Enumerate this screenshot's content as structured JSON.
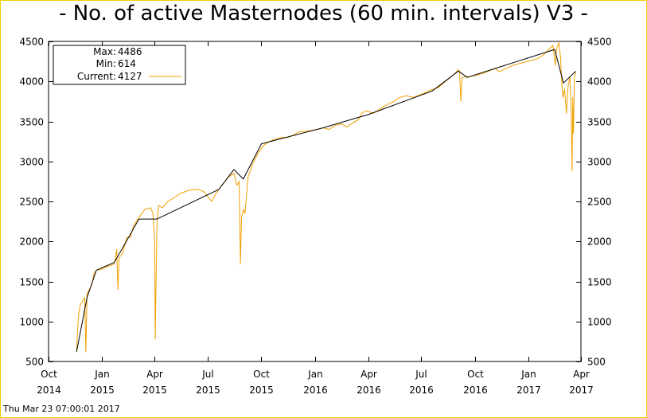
{
  "title": "- No. of active Masternodes (60 min. intervals) V3 -",
  "timestamp": "Thu Mar 23 07:00:01 2017",
  "legend": {
    "max_label": "Max:",
    "max_value": "4486",
    "min_label": "Min:",
    "min_value": "614",
    "current_label": "Current:",
    "current_value": "4127"
  },
  "colors": {
    "border": "#f0d000",
    "data_line": "#f0a000",
    "trend_line": "#000000",
    "axis": "#000000"
  },
  "chart_data": {
    "type": "line",
    "title": "- No. of active Masternodes (60 min. intervals) V3 -",
    "xlabel": "",
    "ylabel": "",
    "ylim": [
      500,
      4500
    ],
    "yticks": [
      500,
      1000,
      1500,
      2000,
      2500,
      3000,
      3500,
      4000,
      4500
    ],
    "xlim": [
      "2014-10-01",
      "2017-04-01"
    ],
    "xticks": [
      {
        "date": "2014-10-01",
        "top": "Oct",
        "bottom": "2014"
      },
      {
        "date": "2015-01-01",
        "top": "Jan",
        "bottom": "2015"
      },
      {
        "date": "2015-04-01",
        "top": "Apr",
        "bottom": "2015"
      },
      {
        "date": "2015-07-01",
        "top": "Jul",
        "bottom": "2015"
      },
      {
        "date": "2015-10-01",
        "top": "Oct",
        "bottom": "2015"
      },
      {
        "date": "2016-01-01",
        "top": "Jan",
        "bottom": "2016"
      },
      {
        "date": "2016-04-01",
        "top": "Apr",
        "bottom": "2016"
      },
      {
        "date": "2016-07-01",
        "top": "Jul",
        "bottom": "2016"
      },
      {
        "date": "2016-10-01",
        "top": "Oct",
        "bottom": "2016"
      },
      {
        "date": "2017-01-01",
        "top": "Jan",
        "bottom": "2017"
      },
      {
        "date": "2017-04-01",
        "top": "Apr",
        "bottom": "2017"
      }
    ],
    "legend_position": "top-left",
    "grid": false,
    "series": [
      {
        "name": "Current",
        "color": "#f0a000",
        "points": [
          [
            "2014-11-18",
            640
          ],
          [
            "2014-11-21",
            1050
          ],
          [
            "2014-11-24",
            1200
          ],
          [
            "2014-11-28",
            1250
          ],
          [
            "2014-12-02",
            1300
          ],
          [
            "2014-12-04",
            620
          ],
          [
            "2014-12-06",
            1350
          ],
          [
            "2014-12-10",
            1400
          ],
          [
            "2014-12-14",
            1450
          ],
          [
            "2014-12-18",
            1600
          ],
          [
            "2014-12-22",
            1640
          ],
          [
            "2014-12-30",
            1650
          ],
          [
            "2015-01-08",
            1680
          ],
          [
            "2015-01-15",
            1700
          ],
          [
            "2015-01-22",
            1720
          ],
          [
            "2015-01-26",
            1900
          ],
          [
            "2015-01-28",
            1400
          ],
          [
            "2015-01-30",
            1800
          ],
          [
            "2015-02-05",
            1850
          ],
          [
            "2015-02-12",
            2050
          ],
          [
            "2015-02-18",
            2050
          ],
          [
            "2015-02-24",
            2200
          ],
          [
            "2015-03-05",
            2300
          ],
          [
            "2015-03-15",
            2400
          ],
          [
            "2015-03-25",
            2420
          ],
          [
            "2015-03-29",
            2350
          ],
          [
            "2015-04-01",
            2000
          ],
          [
            "2015-04-02",
            780
          ],
          [
            "2015-04-03",
            1300
          ],
          [
            "2015-04-05",
            2250
          ],
          [
            "2015-04-08",
            2450
          ],
          [
            "2015-04-14",
            2420
          ],
          [
            "2015-04-24",
            2500
          ],
          [
            "2015-05-05",
            2550
          ],
          [
            "2015-05-15",
            2600
          ],
          [
            "2015-05-30",
            2640
          ],
          [
            "2015-06-15",
            2650
          ],
          [
            "2015-06-25",
            2620
          ],
          [
            "2015-07-02",
            2550
          ],
          [
            "2015-07-08",
            2500
          ],
          [
            "2015-07-15",
            2600
          ],
          [
            "2015-07-25",
            2700
          ],
          [
            "2015-08-05",
            2800
          ],
          [
            "2015-08-15",
            2850
          ],
          [
            "2015-08-20",
            2700
          ],
          [
            "2015-08-24",
            2750
          ],
          [
            "2015-08-26",
            1720
          ],
          [
            "2015-08-28",
            2300
          ],
          [
            "2015-08-31",
            2400
          ],
          [
            "2015-09-03",
            2350
          ],
          [
            "2015-09-08",
            2800
          ],
          [
            "2015-09-15",
            2950
          ],
          [
            "2015-09-25",
            3100
          ],
          [
            "2015-10-05",
            3200
          ],
          [
            "2015-10-15",
            3250
          ],
          [
            "2015-10-25",
            3280
          ],
          [
            "2015-11-05",
            3300
          ],
          [
            "2015-11-15",
            3300
          ],
          [
            "2015-11-25",
            3330
          ],
          [
            "2015-12-05",
            3370
          ],
          [
            "2015-12-20",
            3380
          ],
          [
            "2016-01-05",
            3400
          ],
          [
            "2016-01-15",
            3420
          ],
          [
            "2016-01-25",
            3400
          ],
          [
            "2016-02-05",
            3450
          ],
          [
            "2016-02-15",
            3470
          ],
          [
            "2016-02-25",
            3430
          ],
          [
            "2016-03-05",
            3480
          ],
          [
            "2016-03-15",
            3520
          ],
          [
            "2016-03-22",
            3610
          ],
          [
            "2016-03-30",
            3630
          ],
          [
            "2016-04-10",
            3600
          ],
          [
            "2016-04-20",
            3650
          ],
          [
            "2016-05-01",
            3700
          ],
          [
            "2016-05-15",
            3750
          ],
          [
            "2016-05-25",
            3800
          ],
          [
            "2016-06-05",
            3820
          ],
          [
            "2016-06-18",
            3800
          ],
          [
            "2016-06-28",
            3830
          ],
          [
            "2016-07-05",
            3850
          ],
          [
            "2016-07-20",
            3900
          ],
          [
            "2016-07-30",
            3920
          ],
          [
            "2016-08-10",
            3990
          ],
          [
            "2016-08-20",
            4050
          ],
          [
            "2016-08-28",
            4100
          ],
          [
            "2016-09-03",
            4150
          ],
          [
            "2016-09-05",
            4100
          ],
          [
            "2016-09-07",
            3750
          ],
          [
            "2016-09-09",
            4050
          ],
          [
            "2016-09-18",
            4060
          ],
          [
            "2016-09-28",
            4070
          ],
          [
            "2016-10-05",
            4080
          ],
          [
            "2016-10-15",
            4100
          ],
          [
            "2016-10-28",
            4140
          ],
          [
            "2016-11-05",
            4160
          ],
          [
            "2016-11-12",
            4120
          ],
          [
            "2016-11-20",
            4150
          ],
          [
            "2016-12-05",
            4200
          ],
          [
            "2016-12-20",
            4230
          ],
          [
            "2017-01-05",
            4260
          ],
          [
            "2017-01-15",
            4280
          ],
          [
            "2017-01-25",
            4320
          ],
          [
            "2017-02-05",
            4400
          ],
          [
            "2017-02-12",
            4450
          ],
          [
            "2017-02-16",
            4200
          ],
          [
            "2017-02-18",
            4400
          ],
          [
            "2017-02-22",
            4486
          ],
          [
            "2017-02-25",
            4300
          ],
          [
            "2017-02-27",
            4000
          ],
          [
            "2017-03-01",
            3800
          ],
          [
            "2017-03-04",
            3900
          ],
          [
            "2017-03-07",
            3600
          ],
          [
            "2017-03-10",
            3950
          ],
          [
            "2017-03-13",
            4050
          ],
          [
            "2017-03-15",
            3700
          ],
          [
            "2017-03-17",
            2880
          ],
          [
            "2017-03-18",
            3800
          ],
          [
            "2017-03-19",
            3350
          ],
          [
            "2017-03-21",
            4050
          ],
          [
            "2017-03-23",
            4127
          ]
        ]
      },
      {
        "name": "",
        "color": "#000000",
        "points": [
          [
            "2014-11-18",
            620
          ],
          [
            "2014-12-06",
            1300
          ],
          [
            "2014-12-22",
            1640
          ],
          [
            "2015-01-22",
            1740
          ],
          [
            "2015-03-05",
            2280
          ],
          [
            "2015-04-05",
            2280
          ],
          [
            "2015-07-20",
            2650
          ],
          [
            "2015-08-15",
            2900
          ],
          [
            "2015-08-31",
            2780
          ],
          [
            "2015-10-01",
            3220
          ],
          [
            "2016-01-15",
            3420
          ],
          [
            "2016-03-15",
            3550
          ],
          [
            "2016-03-30",
            3580
          ],
          [
            "2016-07-20",
            3880
          ],
          [
            "2016-09-03",
            4130
          ],
          [
            "2016-09-18",
            4050
          ],
          [
            "2017-02-15",
            4400
          ],
          [
            "2017-03-02",
            3980
          ],
          [
            "2017-03-23",
            4127
          ]
        ]
      }
    ]
  }
}
